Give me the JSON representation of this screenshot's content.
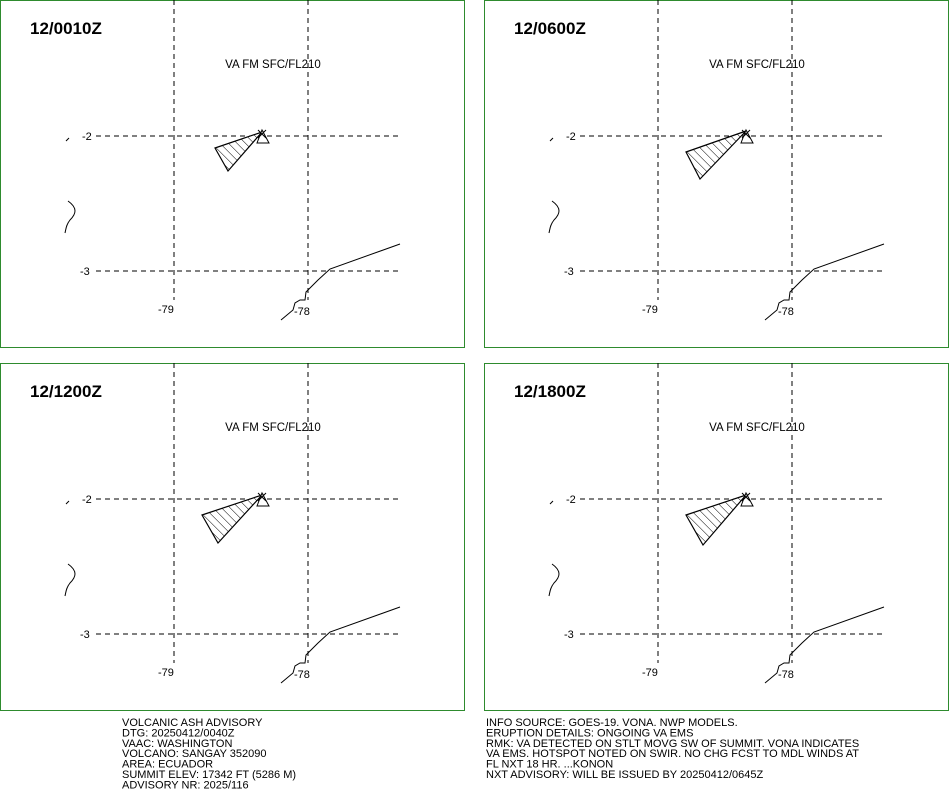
{
  "panels": [
    {
      "time": "12/0010Z",
      "level": "VA FM SFC/FL210",
      "lat_labels": [
        "-2",
        "-3"
      ],
      "lon_labels": [
        "-79",
        "-78"
      ]
    },
    {
      "time": "12/0600Z",
      "level": "VA FM SFC/FL210",
      "lat_labels": [
        "-2",
        "-3"
      ],
      "lon_labels": [
        "-79",
        "-78"
      ]
    },
    {
      "time": "12/1200Z",
      "level": "VA FM SFC/FL210",
      "lat_labels": [
        "-2",
        "-3"
      ],
      "lon_labels": [
        "-79",
        "-78"
      ]
    },
    {
      "time": "12/1800Z",
      "level": "VA FM SFC/FL210",
      "lat_labels": [
        "-2",
        "-3"
      ],
      "lon_labels": [
        "-79",
        "-78"
      ]
    }
  ],
  "advisory_left": [
    "VOLCANIC ASH ADVISORY",
    "DTG: 20250412/0040Z",
    "VAAC: WASHINGTON",
    "VOLCANO: SANGAY 352090",
    "AREA: ECUADOR",
    "SUMMIT ELEV: 17342 FT (5286 M)",
    "ADVISORY NR: 2025/116"
  ],
  "advisory_right": [
    "INFO SOURCE: GOES-19. VONA. NWP MODELS.",
    "ERUPTION DETAILS: ONGOING VA EMS",
    "RMK: VA DETECTED ON STLT MOVG SW OF SUMMIT. VONA INDICATES",
    "VA EMS. HOTSPOT NOTED ON SWIR. NO CHG FCST TO MDL WINDS AT",
    "FL NXT 18 HR. ...KONON",
    "NXT ADVISORY: WILL BE ISSUED BY 20250412/0645Z"
  ]
}
